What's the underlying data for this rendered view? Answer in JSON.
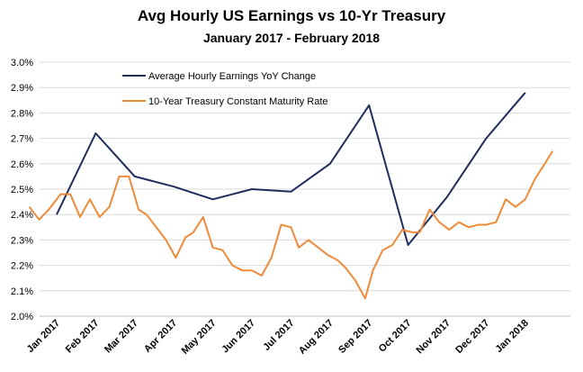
{
  "chart_data": {
    "type": "line",
    "title": "Avg Hourly US Earnings vs 10-Yr Treasury",
    "subtitle": "January 2017 - February 2018",
    "ylim": [
      2.0,
      3.0
    ],
    "ytick_labels": [
      "2.0%",
      "2.1%",
      "2.2%",
      "2.3%",
      "2.4%",
      "2.5%",
      "2.6%",
      "2.7%",
      "2.8%",
      "2.9%",
      "3.0%"
    ],
    "xtick_labels": [
      "Jan 2017",
      "Feb 2017",
      "Mar 2017",
      "Apr 2017",
      "May 2017",
      "Jun 2017",
      "Jul 2017",
      "Aug 2017",
      "Sep 2017",
      "Oct 2017",
      "Nov 2017",
      "Dec 2017",
      "Jan 2018"
    ],
    "x_months": [
      0,
      14
    ],
    "series": [
      {
        "name": "Average Hourly Earnings YoY Change",
        "color": "#1f2d5c",
        "x": [
          0,
          1,
          2,
          3,
          4,
          5,
          6,
          7,
          8,
          9,
          10,
          11,
          12
        ],
        "values": [
          2.4,
          2.72,
          2.55,
          2.51,
          2.46,
          2.5,
          2.49,
          2.6,
          2.83,
          2.28,
          2.47,
          2.7,
          2.88
        ]
      },
      {
        "name": "10-Year Treasury Constant Maturity Rate",
        "color": "#ed8b3a",
        "x": [
          -0.7,
          -0.45,
          -0.2,
          0.1,
          0.35,
          0.6,
          0.85,
          1.1,
          1.35,
          1.6,
          1.85,
          2.1,
          2.3,
          2.55,
          2.8,
          3.05,
          3.3,
          3.5,
          3.75,
          4.0,
          4.25,
          4.5,
          4.75,
          5.0,
          5.25,
          5.5,
          5.75,
          6.0,
          6.2,
          6.45,
          6.7,
          6.95,
          7.2,
          7.4,
          7.65,
          7.9,
          8.1,
          8.35,
          8.6,
          8.85,
          9.1,
          9.3,
          9.55,
          9.8,
          10.05,
          10.3,
          10.55,
          10.8,
          11.0,
          11.25,
          11.5,
          11.75,
          12.0,
          12.25,
          12.5,
          12.7
        ],
        "values": [
          2.43,
          2.38,
          2.42,
          2.48,
          2.48,
          2.39,
          2.46,
          2.39,
          2.43,
          2.55,
          2.55,
          2.42,
          2.4,
          2.35,
          2.3,
          2.23,
          2.31,
          2.33,
          2.39,
          2.27,
          2.26,
          2.2,
          2.18,
          2.18,
          2.16,
          2.23,
          2.36,
          2.35,
          2.27,
          2.3,
          2.27,
          2.24,
          2.22,
          2.19,
          2.14,
          2.07,
          2.18,
          2.26,
          2.28,
          2.34,
          2.33,
          2.33,
          2.42,
          2.37,
          2.34,
          2.37,
          2.35,
          2.36,
          2.36,
          2.37,
          2.46,
          2.43,
          2.46,
          2.54,
          2.6,
          2.65
        ]
      }
    ],
    "legend_position": "top-left-inside"
  }
}
